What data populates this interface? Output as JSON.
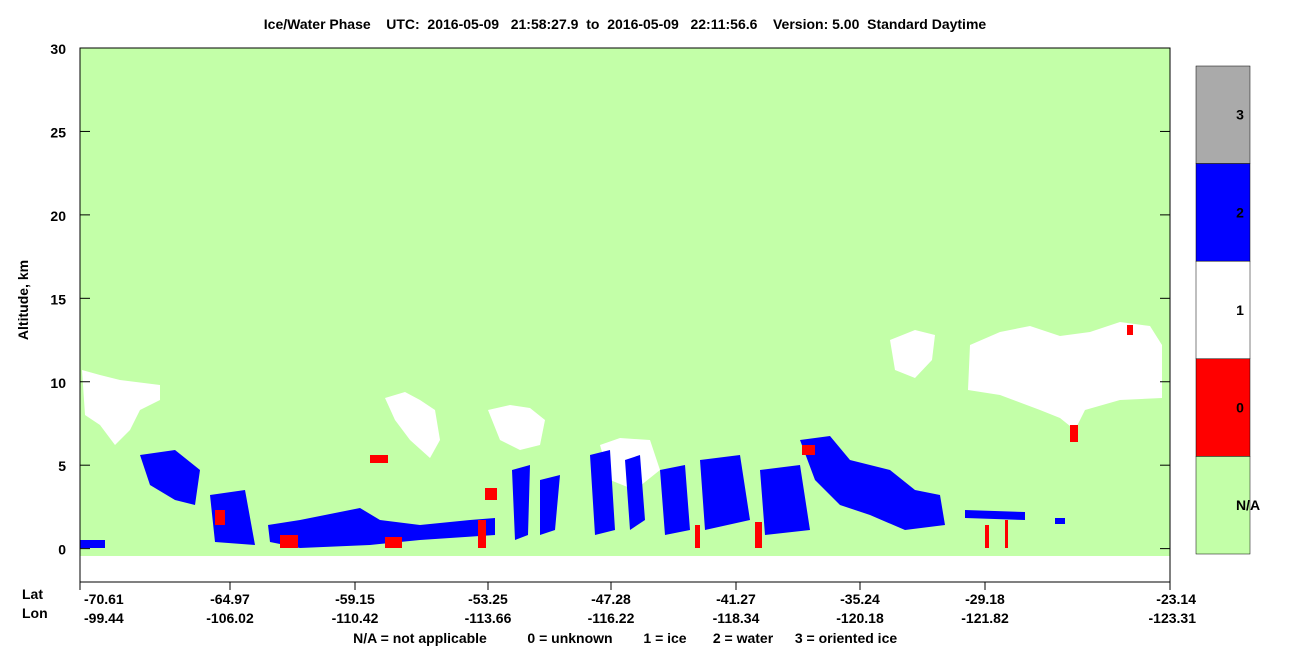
{
  "chart_data": {
    "type": "heatmap",
    "title": "Ice/Water Phase    UTC:  2016-05-09   21:58:27.9  to  2016-05-09   22:11:56.6    Version: 5.00  Standard Daytime",
    "y_label": "Altitude, km",
    "ylim": [
      -2,
      30
    ],
    "yticks": [
      0,
      5,
      10,
      15,
      20,
      25,
      30
    ],
    "x_row_names": [
      "Lat",
      "Lon"
    ],
    "lat": [
      "-70.61",
      "-64.97",
      "-59.15",
      "-53.25",
      "-47.28",
      "-41.27",
      "-35.24",
      "-29.18",
      "-23.14"
    ],
    "lon": [
      "-99.44",
      "-106.02",
      "-110.42",
      "-113.66",
      "-116.22",
      "-118.34",
      "-120.18",
      "-121.82",
      "-123.31"
    ],
    "colorbar": [
      {
        "label": "3",
        "color": "#aaaaaa"
      },
      {
        "label": "2",
        "color": "#0000ff"
      },
      {
        "label": "1",
        "color": "#ffffff"
      },
      {
        "label": "0",
        "color": "#ff0000"
      },
      {
        "label": "N/A",
        "color": "#c3ffa8"
      }
    ],
    "legend": [
      "N/A = not applicable",
      "0 = unknown",
      "1 = ice",
      "2 = water",
      "3 = oriented ice"
    ]
  }
}
